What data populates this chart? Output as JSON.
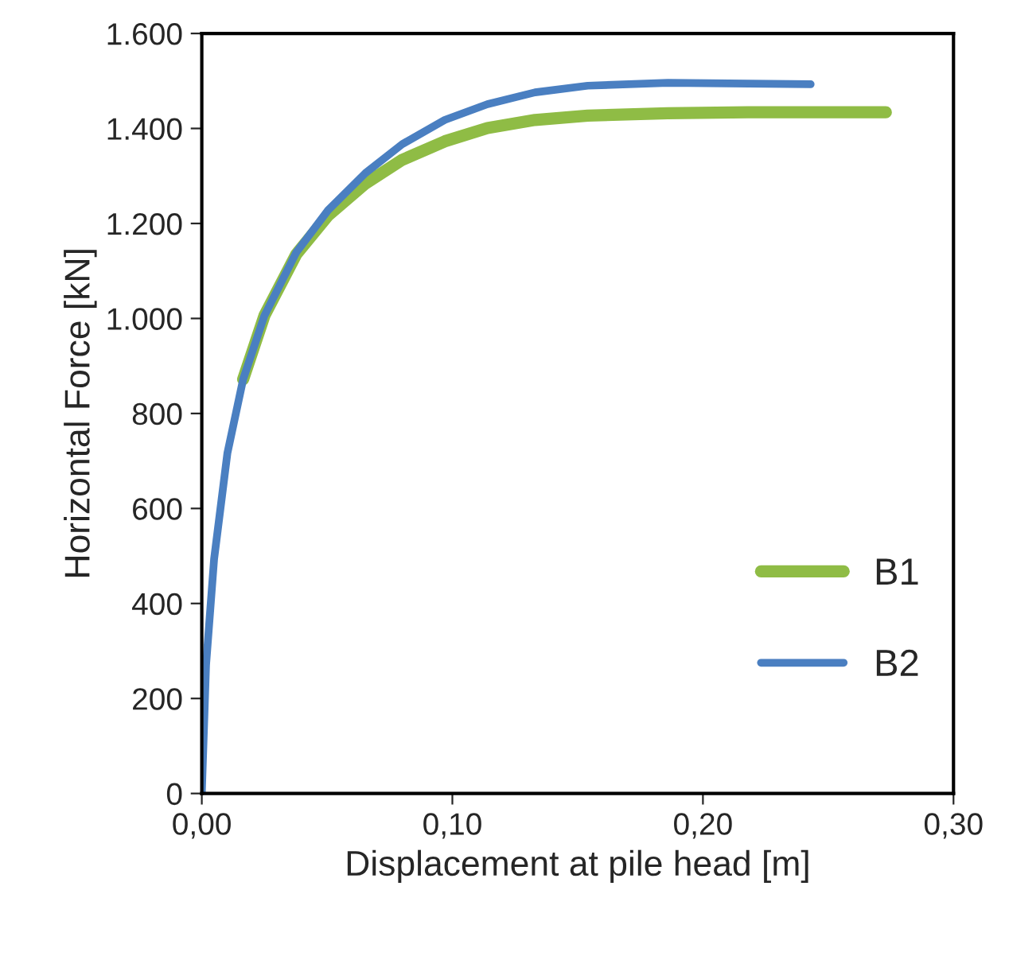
{
  "chart_data": {
    "type": "line",
    "xlabel": "Displacement at pile head [m]",
    "ylabel": "Horizontal Force [kN]",
    "xlim": [
      0,
      0.3
    ],
    "xticks": [
      {
        "value": 0,
        "label": "0,00"
      },
      {
        "value": 0.1,
        "label": "0,10"
      },
      {
        "value": 0.2,
        "label": "0,20"
      },
      {
        "value": 0.3,
        "label": "0,30"
      }
    ],
    "ylim": [
      0,
      1600
    ],
    "yticks": [
      0,
      200,
      400,
      600,
      800,
      {
        "value": 1000,
        "label": "1.000"
      },
      {
        "value": 1200,
        "label": "1.200"
      },
      {
        "value": 1400,
        "label": "1.400"
      },
      {
        "value": 1600,
        "label": "1.600"
      }
    ],
    "grid": false,
    "legend": "bottom right",
    "marker": "none",
    "line_style": "solid",
    "series": [
      {
        "name": "B1",
        "color": "#8fbc45",
        "x": [
          0.0165,
          0.025,
          0.0377,
          0.0504,
          0.0653,
          0.08,
          0.097,
          0.114,
          0.133,
          0.154,
          0.186,
          0.218,
          0.262,
          0.273
        ],
        "values": [
          872,
          1006,
          1135,
          1217,
          1284,
          1334,
          1373,
          1401,
          1418,
          1427,
          1432,
          1434,
          1434,
          1434
        ]
      },
      {
        "name": "B2",
        "color": "#4a7fc1",
        "x": [
          0,
          0.0017,
          0.0049,
          0.0102,
          0.0165,
          0.025,
          0.0377,
          0.0504,
          0.0653,
          0.08,
          0.097,
          0.114,
          0.133,
          0.154,
          0.186,
          0.243
        ],
        "values": [
          0,
          270,
          493,
          716,
          872,
          1006,
          1139,
          1228,
          1306,
          1367,
          1418,
          1451,
          1476,
          1490,
          1496,
          1493
        ]
      }
    ]
  }
}
